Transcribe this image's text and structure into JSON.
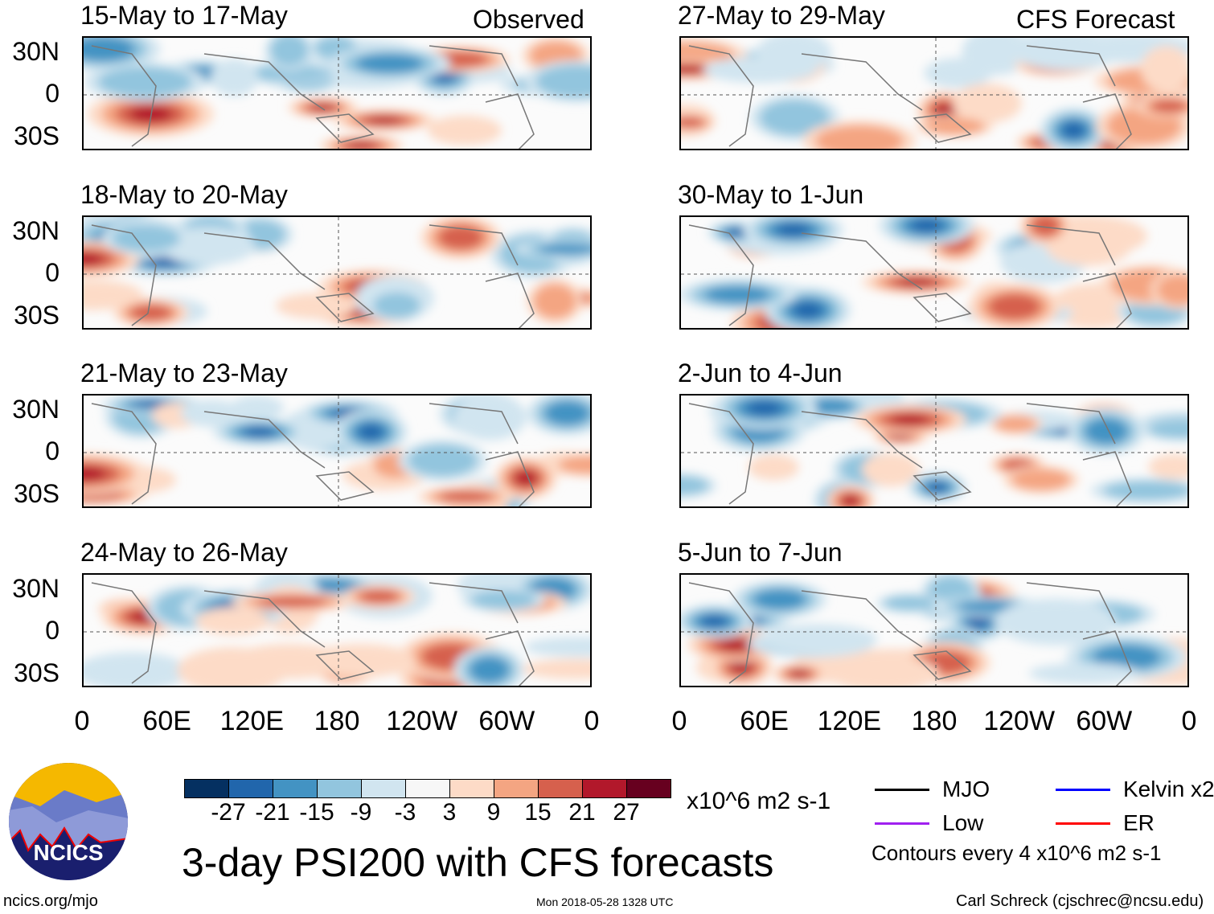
{
  "observed_label": "Observed",
  "forecast_label": "CFS Forecast",
  "panels": {
    "left": [
      "15-May to 17-May",
      "18-May to 20-May",
      "21-May to 23-May",
      "24-May to 26-May"
    ],
    "right": [
      "27-May to 29-May",
      "30-May to 1-Jun",
      "2-Jun to 4-Jun",
      "5-Jun to 7-Jun"
    ]
  },
  "lat_labels": [
    "30N",
    "0",
    "30S"
  ],
  "lon_labels": [
    "0",
    "60E",
    "120E",
    "180",
    "120W",
    "60W",
    "0"
  ],
  "colorbar": {
    "colors": [
      "#053061",
      "#2166ac",
      "#4393c3",
      "#92c5de",
      "#d1e5f0",
      "#f7f7f7",
      "#fddbc7",
      "#f4a582",
      "#d6604d",
      "#b2182b",
      "#67001f"
    ],
    "ticks": [
      "-27",
      "-21",
      "-15",
      "-9",
      "-3",
      "3",
      "9",
      "15",
      "21",
      "27"
    ],
    "units": "x10^6 m2 s-1"
  },
  "legend": {
    "items": [
      {
        "label": "MJO",
        "color": "#000000"
      },
      {
        "label": "Kelvin x2",
        "color": "#0000ff"
      },
      {
        "label": "Low",
        "color": "#a020f0"
      },
      {
        "label": "ER",
        "color": "#ff0000"
      }
    ],
    "contours": "Contours every 4 x10^6 m2 s-1"
  },
  "title": "3-day PSI200 with CFS forecasts",
  "logo_text": "NCICS",
  "footer": {
    "left": "ncics.org/mjo",
    "center": "Mon 2018-05-28 1328 UTC",
    "right": "Carl Schreck (cjschrec@ncsu.edu)"
  }
}
